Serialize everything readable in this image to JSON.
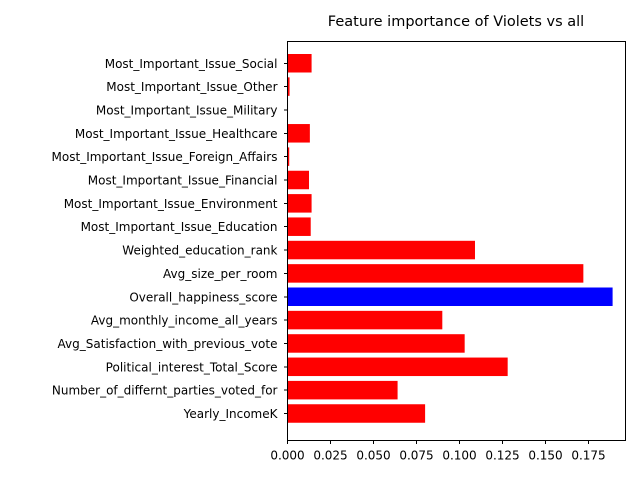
{
  "chart_data": {
    "type": "bar",
    "orientation": "horizontal",
    "title": "Feature importance of Violets vs all",
    "xlabel": "",
    "ylabel": "",
    "xlim": [
      0.0,
      0.1965
    ],
    "xticks": [
      "0.000",
      "0.025",
      "0.050",
      "0.075",
      "0.100",
      "0.125",
      "0.150",
      "0.175"
    ],
    "grid": false,
    "categories": [
      "Yearly_IncomeK",
      "Number_of_differnt_parties_voted_for",
      "Political_interest_Total_Score",
      "Avg_Satisfaction_with_previous_vote",
      "Avg_monthly_income_all_years",
      "Overall_happiness_score",
      "Avg_size_per_room",
      "Weighted_education_rank",
      "Most_Important_Issue_Education",
      "Most_Important_Issue_Environment",
      "Most_Important_Issue_Financial",
      "Most_Important_Issue_Foreign_Affairs",
      "Most_Important_Issue_Healthcare",
      "Most_Important_Issue_Military",
      "Most_Important_Issue_Other",
      "Most_Important_Issue_Social"
    ],
    "values": [
      0.08,
      0.064,
      0.128,
      0.103,
      0.09,
      0.189,
      0.172,
      0.109,
      0.0135,
      0.014,
      0.0125,
      0.001,
      0.013,
      0.0003,
      0.0012,
      0.014
    ],
    "bar_colors": [
      "#ff0000",
      "#ff0000",
      "#ff0000",
      "#ff0000",
      "#ff0000",
      "#0000ff",
      "#ff0000",
      "#ff0000",
      "#ff0000",
      "#ff0000",
      "#ff0000",
      "#ff0000",
      "#ff0000",
      "#ff0000",
      "#ff0000",
      "#ff0000"
    ]
  }
}
